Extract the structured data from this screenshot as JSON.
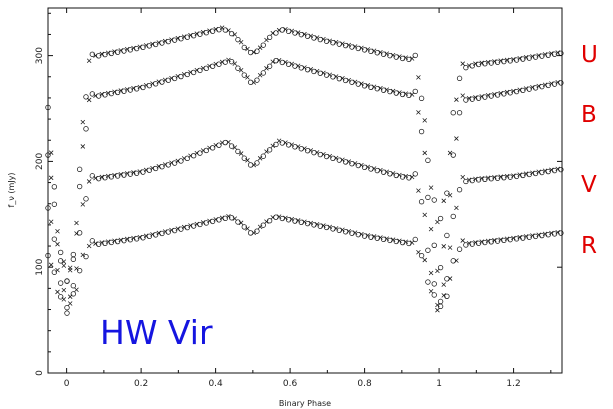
{
  "chart_data": {
    "type": "scatter",
    "title": "",
    "xlabel": "Binary Phase",
    "ylabel": "f_ν (mJy)",
    "xlim": [
      -0.05,
      1.33
    ],
    "ylim": [
      0,
      345
    ],
    "x_ticks": [
      0,
      0.2,
      0.4,
      0.6,
      0.8,
      1,
      1.2
    ],
    "x_tick_labels": [
      "0",
      "0.2",
      "0.4",
      "0.6",
      "0.8",
      "1",
      "1.2"
    ],
    "y_ticks": [
      0,
      100,
      200,
      300
    ],
    "y_tick_labels": [
      "0",
      "100",
      "200",
      "300"
    ],
    "series": [
      {
        "name": "U",
        "color": "#e00000",
        "base": 295,
        "keypoints": [
          [
            -0.05,
            255
          ],
          [
            -0.04,
            200
          ],
          [
            -0.02,
            120
          ],
          [
            0,
            90
          ],
          [
            0.02,
            110
          ],
          [
            0.04,
            220
          ],
          [
            0.06,
            295
          ],
          [
            0.08,
            300
          ],
          [
            0.2,
            308
          ],
          [
            0.3,
            316
          ],
          [
            0.42,
            326
          ],
          [
            0.45,
            320
          ],
          [
            0.48,
            307
          ],
          [
            0.5,
            302
          ],
          [
            0.52,
            307
          ],
          [
            0.55,
            320
          ],
          [
            0.58,
            325
          ],
          [
            0.7,
            314
          ],
          [
            0.8,
            306
          ],
          [
            0.9,
            298
          ],
          [
            0.94,
            296
          ],
          [
            0.96,
            240
          ],
          [
            0.98,
            170
          ],
          [
            1.0,
            140
          ],
          [
            1.02,
            170
          ],
          [
            1.04,
            250
          ],
          [
            1.06,
            288
          ],
          [
            1.1,
            292
          ],
          [
            1.2,
            296
          ],
          [
            1.33,
            303
          ]
        ]
      },
      {
        "name": "B",
        "color": "#e00000",
        "base": 262,
        "keypoints": [
          [
            -0.05,
            210
          ],
          [
            -0.04,
            180
          ],
          [
            -0.02,
            110
          ],
          [
            0,
            90
          ],
          [
            0.02,
            105
          ],
          [
            0.04,
            200
          ],
          [
            0.06,
            258
          ],
          [
            0.08,
            262
          ],
          [
            0.2,
            270
          ],
          [
            0.3,
            280
          ],
          [
            0.44,
            296
          ],
          [
            0.47,
            285
          ],
          [
            0.5,
            273
          ],
          [
            0.53,
            285
          ],
          [
            0.56,
            296
          ],
          [
            0.7,
            282
          ],
          [
            0.8,
            272
          ],
          [
            0.9,
            264
          ],
          [
            0.94,
            262
          ],
          [
            0.96,
            210
          ],
          [
            0.98,
            130
          ],
          [
            1.0,
            92
          ],
          [
            1.02,
            130
          ],
          [
            1.04,
            210
          ],
          [
            1.06,
            258
          ],
          [
            1.1,
            260
          ],
          [
            1.2,
            266
          ],
          [
            1.33,
            275
          ]
        ]
      },
      {
        "name": "V",
        "color": "#e00000",
        "base": 184,
        "keypoints": [
          [
            -0.05,
            160
          ],
          [
            -0.04,
            140
          ],
          [
            -0.02,
            90
          ],
          [
            0,
            65
          ],
          [
            0.02,
            80
          ],
          [
            0.04,
            150
          ],
          [
            0.06,
            181
          ],
          [
            0.08,
            184
          ],
          [
            0.2,
            190
          ],
          [
            0.3,
            200
          ],
          [
            0.43,
            219
          ],
          [
            0.46,
            210
          ],
          [
            0.5,
            195
          ],
          [
            0.54,
            210
          ],
          [
            0.57,
            219
          ],
          [
            0.7,
            205
          ],
          [
            0.8,
            195
          ],
          [
            0.9,
            186
          ],
          [
            0.94,
            184
          ],
          [
            0.96,
            150
          ],
          [
            0.98,
            90
          ],
          [
            1.0,
            62
          ],
          [
            1.02,
            90
          ],
          [
            1.04,
            150
          ],
          [
            1.06,
            181
          ],
          [
            1.1,
            183
          ],
          [
            1.2,
            186
          ],
          [
            1.33,
            193
          ]
        ]
      },
      {
        "name": "R",
        "color": "#e00000",
        "base": 122,
        "keypoints": [
          [
            -0.05,
            115
          ],
          [
            -0.04,
            100
          ],
          [
            -0.02,
            75
          ],
          [
            0,
            60
          ],
          [
            0.02,
            72
          ],
          [
            0.04,
            105
          ],
          [
            0.06,
            120
          ],
          [
            0.08,
            122
          ],
          [
            0.2,
            128
          ],
          [
            0.3,
            136
          ],
          [
            0.44,
            148
          ],
          [
            0.47,
            141
          ],
          [
            0.5,
            131
          ],
          [
            0.53,
            141
          ],
          [
            0.56,
            148
          ],
          [
            0.7,
            138
          ],
          [
            0.8,
            130
          ],
          [
            0.9,
            124
          ],
          [
            0.94,
            122
          ],
          [
            0.96,
            105
          ],
          [
            0.98,
            75
          ],
          [
            1.0,
            60
          ],
          [
            1.02,
            75
          ],
          [
            1.04,
            105
          ],
          [
            1.06,
            121
          ],
          [
            1.1,
            123
          ],
          [
            1.2,
            127
          ],
          [
            1.33,
            133
          ]
        ]
      }
    ],
    "series_labels": [
      {
        "text": "U",
        "color": "#e00000"
      },
      {
        "text": "B",
        "color": "#e00000"
      },
      {
        "text": "V",
        "color": "#e00000"
      },
      {
        "text": "R",
        "color": "#e00000"
      }
    ],
    "annotation": {
      "text": "HW Vir",
      "color": "#1515e0"
    },
    "grid": false
  }
}
